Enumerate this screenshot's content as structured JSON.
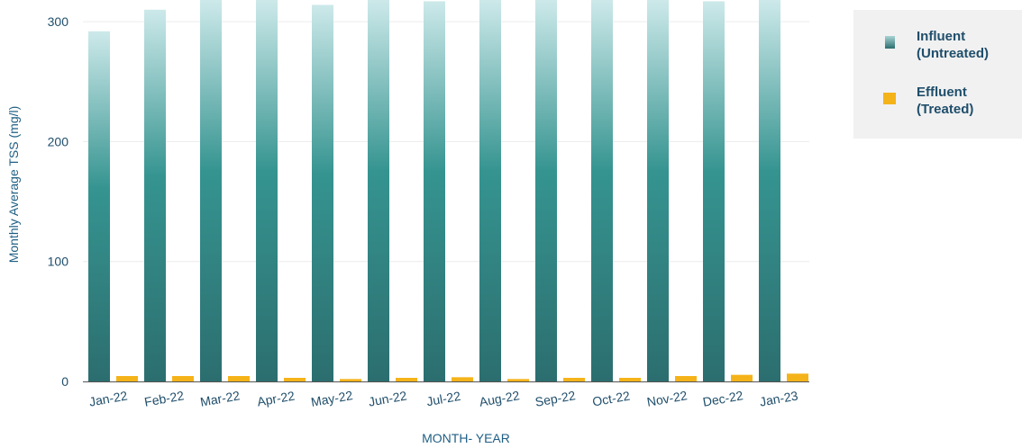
{
  "chart_data": {
    "type": "bar",
    "xlabel": "MONTH- YEAR",
    "ylabel": "Monthly Average TSS (mg/l)",
    "ylim": [
      0,
      320
    ],
    "yticks": [
      0,
      100,
      200,
      300
    ],
    "grid": true,
    "legend_position": "top-right",
    "categories": [
      "Jan-22",
      "Feb-22",
      "Mar-22",
      "Apr-22",
      "May-22",
      "Jun-22",
      "Jul-22",
      "Aug-22",
      "Sep-22",
      "Oct-22",
      "Nov-22",
      "Dec-22",
      "Jan-23"
    ],
    "series": [
      {
        "name": "Influent (Untreated)",
        "color": "#2f8f8c",
        "values": [
          292,
          310,
          320,
          320,
          314,
          320,
          317,
          320,
          320,
          320,
          320,
          317,
          320
        ]
      },
      {
        "name": "Effluent (Treated)",
        "color": "#f5b31a",
        "values": [
          4.5,
          4.5,
          4.5,
          3,
          2,
          3,
          3.5,
          2,
          3,
          3,
          4.5,
          5.5,
          6.5
        ]
      }
    ]
  },
  "legend": {
    "influent_label": "Influent\n(Untreated)",
    "effluent_label": "Effluent\n(Treated)"
  }
}
